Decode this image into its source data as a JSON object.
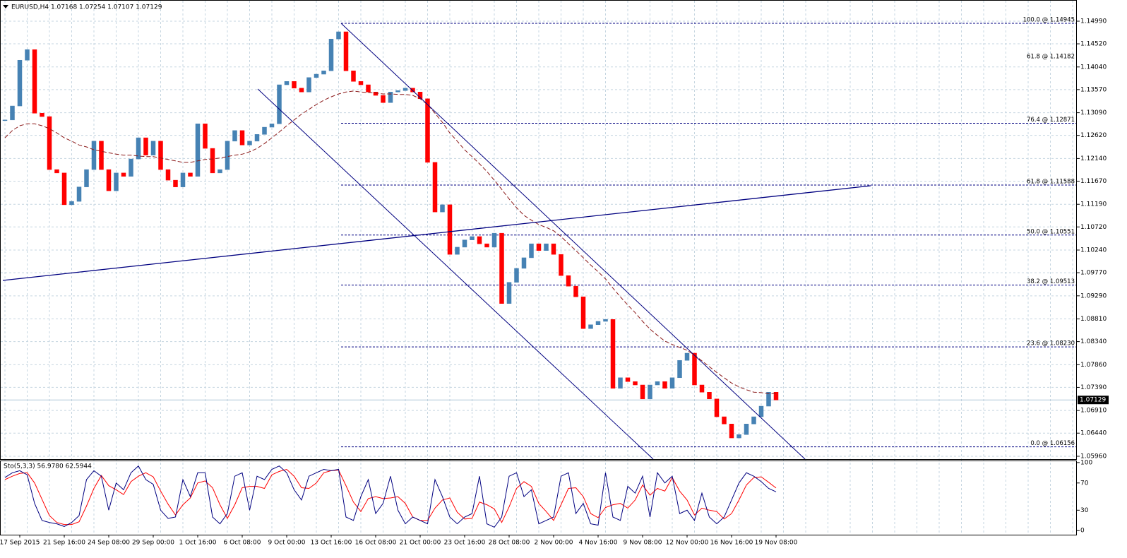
{
  "chart_data": [
    {
      "type": "candlestick",
      "title": "EURUSD,H4  1.07168 1.07254 1.07107 1.07129",
      "categories": [
        null,
        null,
        "17 Sep 2015",
        null,
        null,
        null,
        null,
        null,
        "21 Sep 16:00",
        null,
        null,
        null,
        null,
        null,
        "24 Sep 08:00",
        null,
        null,
        null,
        null,
        null,
        "29 Sep 00:00",
        null,
        null,
        null,
        null,
        null,
        "1 Oct 16:00",
        null,
        null,
        null,
        null,
        null,
        "6 Oct 08:00",
        null,
        null,
        null,
        null,
        null,
        "9 Oct 00:00",
        null,
        null,
        null,
        null,
        null,
        "13 Oct 16:00",
        null,
        null,
        null,
        null,
        null,
        "16 Oct 08:00",
        null,
        null,
        null,
        null,
        null,
        "21 Oct 00:00",
        null,
        null,
        null,
        null,
        null,
        "23 Oct 16:00",
        null,
        null,
        null,
        null,
        null,
        "28 Oct 08:00",
        null,
        null,
        null,
        null,
        null,
        "2 Nov 00:00",
        null,
        null,
        null,
        null,
        null,
        "4 Nov 16:00",
        null,
        null,
        null,
        null,
        null,
        "9 Nov 08:00",
        null,
        null,
        null,
        null,
        null,
        "12 Nov 00:00",
        null,
        null,
        null,
        null,
        null,
        "16 Nov 16:00",
        null,
        null,
        null,
        null,
        null,
        "19 Nov 08:00"
      ],
      "close": [
        1.1294,
        1.1323,
        1.1418,
        1.144,
        1.1308,
        1.1301,
        1.1191,
        1.1184,
        1.1118,
        1.1125,
        1.1155,
        1.1191,
        1.125,
        1.1191,
        1.1147,
        1.1184,
        1.1177,
        1.1213,
        1.1257,
        1.1221,
        1.125,
        1.1191,
        1.1169,
        1.1155,
        1.1184,
        1.1177,
        1.1286,
        1.1235,
        1.1184,
        1.1191,
        1.125,
        1.1272,
        1.1242,
        1.125,
        1.1264,
        1.1279,
        1.1286,
        1.1367,
        1.1374,
        1.136,
        1.1352,
        1.1382,
        1.1389,
        1.1396,
        1.1462,
        1.1477,
        1.1396,
        1.1374,
        1.1367,
        1.1352,
        1.1345,
        1.133,
        1.1352,
        1.1355,
        1.136,
        1.1352,
        1.1338,
        1.1206,
        1.1103,
        1.1118,
        1.1015,
        1.103,
        1.1045,
        1.1052,
        1.1037,
        1.103,
        1.1059,
        1.0913,
        1.0957,
        1.0986,
        1.1008,
        1.1037,
        1.1023,
        1.1037,
        1.1015,
        1.0971,
        1.0949,
        1.0927,
        1.0861,
        1.0869,
        1.0876,
        1.088,
        1.0737,
        1.0759,
        1.0751,
        1.0744,
        1.0715,
        1.0744,
        1.0751,
        1.0737,
        1.0759,
        1.0795,
        1.081,
        1.0744,
        1.0729,
        1.0715,
        1.0678,
        1.0663,
        1.0634,
        1.0641,
        1.0663,
        1.0678,
        1.07,
        1.0729,
        1.07129
      ],
      "up_color": "#4682b4",
      "down_color": "#ff0000",
      "ma": {
        "color": "#8b1a1a",
        "values": [
          1.1257,
          1.1272,
          1.1282,
          1.1286,
          1.1286,
          1.1282,
          1.1276,
          1.1267,
          1.1257,
          1.125,
          1.1242,
          1.1238,
          1.1232,
          1.1229,
          1.1226,
          1.1223,
          1.1221,
          1.1221,
          1.1219,
          1.1218,
          1.1218,
          1.1215,
          1.1212,
          1.1209,
          1.1206,
          1.1206,
          1.1209,
          1.1212,
          1.1213,
          1.1215,
          1.1218,
          1.1221,
          1.1223,
          1.1228,
          1.1235,
          1.1245,
          1.1257,
          1.1269,
          1.1282,
          1.1294,
          1.1306,
          1.1316,
          1.1326,
          1.1335,
          1.1342,
          1.1348,
          1.1352,
          1.1354,
          1.1352,
          1.1351,
          1.135,
          1.1348,
          1.1348,
          1.1347,
          1.1347,
          1.1345,
          1.1338,
          1.1326,
          1.1308,
          1.1289,
          1.1267,
          1.125,
          1.1232,
          1.1218,
          1.1203,
          1.1187,
          1.1169,
          1.115,
          1.113,
          1.1112,
          1.1096,
          1.1086,
          1.1077,
          1.1071,
          1.1064,
          1.1052,
          1.1037,
          1.1023,
          1.1008,
          1.0993,
          1.0979,
          1.0964,
          1.0945,
          1.0927,
          1.091,
          1.0894,
          1.0876,
          1.086,
          1.0847,
          1.0835,
          1.0828,
          1.0822,
          1.0816,
          1.0806,
          1.0794,
          1.0782,
          1.077,
          1.0759,
          1.0748,
          1.074,
          1.0734,
          1.0729,
          1.0728,
          1.0726,
          1.0726
        ]
      },
      "ylim": [
        1.05901,
        1.15371
      ],
      "yticks": [
        {
          "value": 1.1499,
          "label": "1.14990"
        },
        {
          "value": 1.1452,
          "label": "1.14520"
        },
        {
          "value": 1.1404,
          "label": "1.14040"
        },
        {
          "value": 1.1357,
          "label": "1.13570"
        },
        {
          "value": 1.1309,
          "label": "1.13090"
        },
        {
          "value": 1.1262,
          "label": "1.12620"
        },
        {
          "value": 1.1214,
          "label": "1.12140"
        },
        {
          "value": 1.1167,
          "label": "1.11670"
        },
        {
          "value": 1.1119,
          "label": "1.11190"
        },
        {
          "value": 1.1072,
          "label": "1.10720"
        },
        {
          "value": 1.1024,
          "label": "1.10240"
        },
        {
          "value": 1.0977,
          "label": "1.09770"
        },
        {
          "value": 1.0929,
          "label": "1.09290"
        },
        {
          "value": 1.0881,
          "label": "1.08810"
        },
        {
          "value": 1.0834,
          "label": "1.08340"
        },
        {
          "value": 1.0786,
          "label": "1.07860"
        },
        {
          "value": 1.0739,
          "label": "1.07390"
        },
        {
          "value": 1.0691,
          "label": "1.06910"
        },
        {
          "value": 1.0644,
          "label": "1.06440"
        },
        {
          "value": 1.0596,
          "label": "1.05960"
        }
      ],
      "grid": true,
      "fib_color": "#000080",
      "fib_levels": [
        {
          "value": 1.14945,
          "label": "100.0 @ 1.14945",
          "line": true
        },
        {
          "value": 1.14182,
          "label": "61.8 @ 1.14182",
          "line": false,
          "color": "#a0a0a0"
        },
        {
          "value": 1.12871,
          "label": "76.4 @ 1.12871",
          "line": true
        },
        {
          "value": 1.11588,
          "label": "61.8 @ 1.11588",
          "line": true
        },
        {
          "value": 1.10551,
          "label": "50.0 @ 1.10551",
          "line": true
        },
        {
          "value": 1.09513,
          "label": "38.2 @ 1.09513",
          "line": true
        },
        {
          "value": 1.0823,
          "label": "23.6 @ 1.08230",
          "line": true
        },
        {
          "value": 1.06156,
          "label": "0.0 @ 1.06156",
          "line": true
        }
      ],
      "last_price": {
        "value": 1.07129,
        "label": "1.07129"
      }
    },
    {
      "type": "line",
      "title": "Sto(5,3,3) 56.9780 62.5944",
      "series": [
        {
          "color": "#000080",
          "values": [
            78,
            85,
            88,
            82,
            40,
            15,
            12,
            10,
            6,
            12,
            22,
            75,
            88,
            80,
            30,
            70,
            60,
            85,
            95,
            75,
            68,
            30,
            18,
            20,
            75,
            50,
            85,
            85,
            20,
            10,
            25,
            80,
            85,
            30,
            80,
            75,
            90,
            95,
            85,
            60,
            45,
            80,
            85,
            90,
            88,
            90,
            20,
            15,
            50,
            75,
            25,
            40,
            80,
            30,
            10,
            20,
            15,
            10,
            75,
            50,
            20,
            10,
            20,
            25,
            80,
            10,
            5,
            20,
            80,
            85,
            50,
            60,
            10,
            15,
            20,
            80,
            85,
            25,
            40,
            10,
            8,
            85,
            20,
            15,
            65,
            55,
            80,
            20,
            85,
            70,
            80,
            25,
            30,
            15,
            55,
            20,
            10,
            20,
            45,
            70,
            85,
            80,
            72,
            62,
            56.978
          ]
        },
        {
          "color": "#ff0000",
          "values": [
            75,
            80,
            84,
            85,
            70,
            46,
            22,
            12,
            9,
            9,
            13,
            36,
            62,
            81,
            66,
            60,
            53,
            72,
            80,
            85,
            79,
            58,
            39,
            23,
            38,
            48,
            70,
            73,
            63,
            38,
            18,
            38,
            63,
            65,
            65,
            62,
            82,
            87,
            90,
            80,
            63,
            62,
            70,
            85,
            88,
            89,
            66,
            42,
            28,
            47,
            50,
            47,
            48,
            50,
            40,
            20,
            15,
            15,
            33,
            45,
            48,
            27,
            17,
            18,
            42,
            38,
            32,
            12,
            35,
            62,
            72,
            65,
            40,
            28,
            15,
            38,
            62,
            63,
            50,
            25,
            19,
            34,
            38,
            40,
            33,
            45,
            67,
            52,
            62,
            58,
            78,
            58,
            45,
            23,
            33,
            30,
            28,
            17,
            25,
            45,
            67,
            78,
            79,
            71,
            62.5944
          ]
        }
      ],
      "ylim": [
        -6,
        103
      ],
      "yticks": [
        100,
        70,
        30,
        0
      ]
    }
  ]
}
